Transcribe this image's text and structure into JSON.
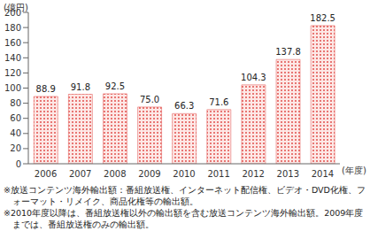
{
  "chart_data": {
    "type": "bar",
    "categories": [
      "2006",
      "2007",
      "2008",
      "2009",
      "2010",
      "2011",
      "2012",
      "2013",
      "2014"
    ],
    "values": [
      88.9,
      91.8,
      92.5,
      75.0,
      66.3,
      71.6,
      104.3,
      137.8,
      182.5
    ],
    "value_labels": [
      "88.9",
      "91.8",
      "92.5",
      "75.0",
      "66.3",
      "71.6",
      "104.3",
      "137.8",
      "182.5"
    ],
    "color": "#e2504c",
    "ylim": [
      0,
      200
    ],
    "yticks": [
      0,
      20,
      40,
      60,
      80,
      100,
      120,
      140,
      160,
      180,
      200
    ],
    "y_label": "(億円)",
    "x_label": "(年度)",
    "annotations": [
      "※放送コンテンツ海外輸出額：番組放送権、インターネット配信権、ビデオ・DVD化権、フォーマット・リメイク、商品化権等の輸出額。",
      "※2010年度以降は、番組放送権以外の輸出額を含む放送コンテンツ海外輸出額。2009年度までは、番組放送権のみの輸出額。"
    ],
    "grid": false,
    "data_labels": true
  }
}
